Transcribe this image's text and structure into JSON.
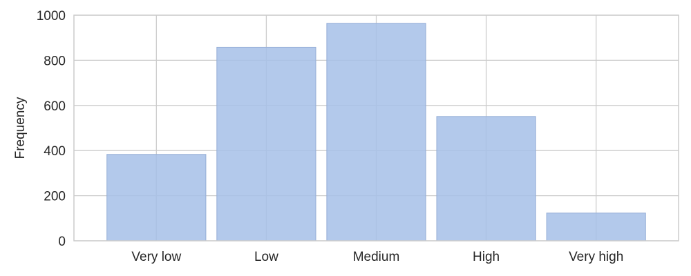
{
  "chart_data": {
    "type": "bar",
    "title": "",
    "xlabel": "",
    "ylabel": "Frequency",
    "categories": [
      "Very low",
      "Low",
      "Medium",
      "High",
      "Very high"
    ],
    "values": [
      383,
      858,
      964,
      551,
      123
    ],
    "ylim": [
      0,
      1000
    ],
    "yticks": [
      0,
      200,
      400,
      600,
      800,
      1000
    ],
    "grid": true,
    "legend": "none",
    "bar_color": "#a6bfe8",
    "bar_edge_color": "#94add6",
    "grid_color": "#cccccc",
    "axes_edge_color": "#cccccc",
    "text_color": "#262626"
  }
}
